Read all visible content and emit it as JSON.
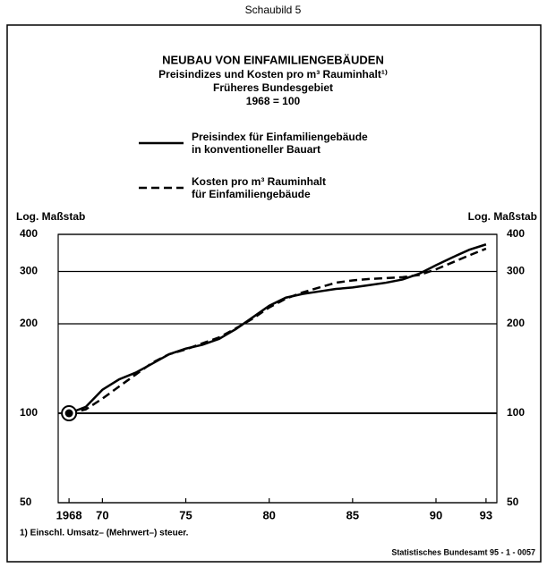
{
  "chart_data": {
    "type": "line",
    "header": "Schaubild 5",
    "title": "NEUBAU VON EINFAMILIENGEBÄUDEN",
    "subtitle": [
      "Preisindizes und Kosten pro m³ Rauminhalt¹⁾",
      "Früheres Bundesgebiet",
      "1968 = 100"
    ],
    "y_axis_label": "Log. Maßstab",
    "y2_axis_label": "Log. Maßstab",
    "log_scale": true,
    "grid": true,
    "x": [
      1968,
      1969,
      1970,
      1971,
      1972,
      1973,
      1974,
      1975,
      1976,
      1977,
      1978,
      1979,
      1980,
      1981,
      1982,
      1983,
      1984,
      1985,
      1986,
      1987,
      1988,
      1989,
      1990,
      1991,
      1992,
      1993
    ],
    "series": [
      {
        "name": "Preisindex für Einfamiliengebäude\nin konventioneller Bauart",
        "color": "#000000",
        "dash": false,
        "values": [
          100,
          105,
          120,
          130,
          137,
          147,
          158,
          165,
          170,
          178,
          192,
          210,
          230,
          245,
          252,
          257,
          262,
          265,
          270,
          275,
          282,
          295,
          315,
          335,
          355,
          370
        ]
      },
      {
        "name": "Kosten pro m³ Rauminhalt\nfür Einfamiliengebäude",
        "color": "#000000",
        "dash": true,
        "values": [
          100,
          103,
          112,
          123,
          135,
          148,
          158,
          164,
          172,
          180,
          193,
          208,
          227,
          243,
          255,
          265,
          275,
          280,
          283,
          285,
          287,
          292,
          305,
          322,
          340,
          358
        ]
      }
    ],
    "xlim": [
      1967.35,
      1993.65
    ],
    "xticks": [
      1968,
      {
        "value": 1970,
        "label": "70"
      },
      {
        "value": 1975,
        "label": "75"
      },
      {
        "value": 1980,
        "label": "80"
      },
      {
        "value": 1985,
        "label": "85"
      },
      {
        "value": 1990,
        "label": "90"
      },
      {
        "value": 1993,
        "label": "93"
      }
    ],
    "ylim": [
      50,
      400
    ],
    "yticks": [
      50,
      100,
      200,
      300,
      400
    ],
    "footnote": "1) Einschl. Umsatz– (Mehrwert–) steuer.",
    "source": "Statistisches Bundesamt 95 - 1 - 0057"
  }
}
